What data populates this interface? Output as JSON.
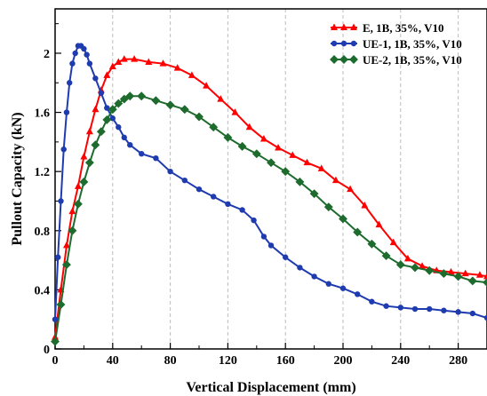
{
  "chart_data": {
    "type": "line",
    "title": "",
    "xlabel": "Vertical Displacement (mm)",
    "ylabel": "Pullout Capacity (kN)",
    "xlim": [
      0,
      300
    ],
    "ylim": [
      0,
      2.3
    ],
    "xticks": [
      "0",
      "40",
      "80",
      "120",
      "160",
      "200",
      "240",
      "280"
    ],
    "yticks": [
      "0",
      "0.4",
      "0.8",
      "1.2",
      "1.6",
      "2"
    ],
    "grid": "vertical dashed",
    "legend_position": "top-right",
    "series": [
      {
        "name": "E, 1B, 35%, V10",
        "color": "#ff0000",
        "marker": "triangle",
        "points": [
          [
            0,
            0.08
          ],
          [
            4,
            0.4
          ],
          [
            8,
            0.7
          ],
          [
            12,
            0.93
          ],
          [
            16,
            1.1
          ],
          [
            20,
            1.3
          ],
          [
            24,
            1.47
          ],
          [
            28,
            1.62
          ],
          [
            32,
            1.75
          ],
          [
            36,
            1.85
          ],
          [
            40,
            1.91
          ],
          [
            44,
            1.94
          ],
          [
            48,
            1.96
          ],
          [
            55,
            1.96
          ],
          [
            65,
            1.94
          ],
          [
            75,
            1.93
          ],
          [
            85,
            1.9
          ],
          [
            95,
            1.85
          ],
          [
            105,
            1.78
          ],
          [
            115,
            1.69
          ],
          [
            125,
            1.6
          ],
          [
            135,
            1.5
          ],
          [
            145,
            1.42
          ],
          [
            155,
            1.36
          ],
          [
            165,
            1.31
          ],
          [
            175,
            1.26
          ],
          [
            185,
            1.22
          ],
          [
            195,
            1.14
          ],
          [
            205,
            1.08
          ],
          [
            215,
            0.97
          ],
          [
            225,
            0.84
          ],
          [
            235,
            0.72
          ],
          [
            245,
            0.61
          ],
          [
            255,
            0.56
          ],
          [
            265,
            0.53
          ],
          [
            275,
            0.52
          ],
          [
            285,
            0.51
          ],
          [
            295,
            0.5
          ],
          [
            300,
            0.49
          ]
        ]
      },
      {
        "name": "UE-1, 1B, 35%, V10",
        "color": "#1f3bb0",
        "marker": "circle",
        "points": [
          [
            0,
            0.2
          ],
          [
            2,
            0.62
          ],
          [
            4,
            1.0
          ],
          [
            6,
            1.35
          ],
          [
            8,
            1.6
          ],
          [
            10,
            1.8
          ],
          [
            12,
            1.93
          ],
          [
            14,
            2.0
          ],
          [
            16,
            2.05
          ],
          [
            18,
            2.05
          ],
          [
            20,
            2.03
          ],
          [
            22,
            1.99
          ],
          [
            24,
            1.93
          ],
          [
            28,
            1.83
          ],
          [
            32,
            1.73
          ],
          [
            36,
            1.63
          ],
          [
            40,
            1.56
          ],
          [
            44,
            1.5
          ],
          [
            48,
            1.43
          ],
          [
            52,
            1.38
          ],
          [
            60,
            1.32
          ],
          [
            70,
            1.29
          ],
          [
            80,
            1.2
          ],
          [
            90,
            1.14
          ],
          [
            100,
            1.08
          ],
          [
            110,
            1.03
          ],
          [
            120,
            0.98
          ],
          [
            130,
            0.94
          ],
          [
            138,
            0.87
          ],
          [
            145,
            0.76
          ],
          [
            150,
            0.7
          ],
          [
            160,
            0.62
          ],
          [
            170,
            0.55
          ],
          [
            180,
            0.49
          ],
          [
            190,
            0.44
          ],
          [
            200,
            0.41
          ],
          [
            210,
            0.37
          ],
          [
            220,
            0.32
          ],
          [
            230,
            0.29
          ],
          [
            240,
            0.28
          ],
          [
            250,
            0.27
          ],
          [
            260,
            0.27
          ],
          [
            270,
            0.26
          ],
          [
            280,
            0.25
          ],
          [
            290,
            0.24
          ],
          [
            300,
            0.21
          ]
        ]
      },
      {
        "name": "UE-2, 1B, 35%, V10",
        "color": "#1e6b2e",
        "marker": "square",
        "points": [
          [
            0,
            0.05
          ],
          [
            4,
            0.3
          ],
          [
            8,
            0.57
          ],
          [
            12,
            0.8
          ],
          [
            16,
            0.98
          ],
          [
            20,
            1.13
          ],
          [
            24,
            1.26
          ],
          [
            28,
            1.38
          ],
          [
            32,
            1.47
          ],
          [
            36,
            1.55
          ],
          [
            40,
            1.62
          ],
          [
            44,
            1.66
          ],
          [
            48,
            1.69
          ],
          [
            52,
            1.71
          ],
          [
            60,
            1.71
          ],
          [
            70,
            1.68
          ],
          [
            80,
            1.65
          ],
          [
            90,
            1.62
          ],
          [
            100,
            1.57
          ],
          [
            110,
            1.5
          ],
          [
            120,
            1.43
          ],
          [
            130,
            1.37
          ],
          [
            140,
            1.32
          ],
          [
            150,
            1.26
          ],
          [
            160,
            1.2
          ],
          [
            170,
            1.13
          ],
          [
            180,
            1.05
          ],
          [
            190,
            0.96
          ],
          [
            200,
            0.88
          ],
          [
            210,
            0.79
          ],
          [
            220,
            0.71
          ],
          [
            230,
            0.63
          ],
          [
            240,
            0.57
          ],
          [
            250,
            0.55
          ],
          [
            260,
            0.53
          ],
          [
            270,
            0.51
          ],
          [
            280,
            0.49
          ],
          [
            290,
            0.46
          ],
          [
            300,
            0.45
          ]
        ]
      }
    ]
  }
}
